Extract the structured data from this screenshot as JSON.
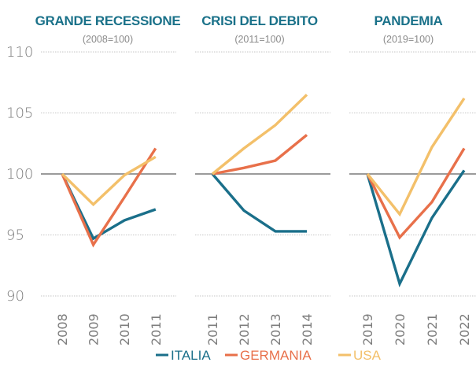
{
  "chart_data": {
    "type": "line",
    "y_axis": {
      "ticks": [
        110,
        105,
        100,
        95,
        90
      ],
      "ylim": [
        90,
        110
      ],
      "baseline": 100
    },
    "grid": true,
    "legend": {
      "placement": "bottom-center",
      "entries": [
        {
          "name": "ITALIA",
          "color": "#1a6f8a"
        },
        {
          "name": "GERMANIA",
          "color": "#e8704a"
        },
        {
          "name": "USA",
          "color": "#f3c06a"
        }
      ]
    },
    "panels": [
      {
        "title": "GRANDE RECESSIONE",
        "subtitle": "(2008=100)",
        "categories": [
          "2008",
          "2009",
          "2010",
          "2011"
        ],
        "series": [
          {
            "name": "ITALIA",
            "values": [
              100,
              94.7,
              96.2,
              97.1
            ]
          },
          {
            "name": "GERMANIA",
            "values": [
              100,
              94.2,
              98.1,
              102.1
            ]
          },
          {
            "name": "USA",
            "values": [
              100,
              97.5,
              99.9,
              101.4
            ]
          }
        ]
      },
      {
        "title": "CRISI DEL DEBITO",
        "subtitle": "(2011=100)",
        "categories": [
          "2011",
          "2012",
          "2013",
          "2014"
        ],
        "series": [
          {
            "name": "ITALIA",
            "values": [
              100,
              97.0,
              95.3,
              95.3
            ]
          },
          {
            "name": "GERMANIA",
            "values": [
              100,
              100.5,
              101.1,
              103.2
            ]
          },
          {
            "name": "USA",
            "values": [
              100,
              102.1,
              104.0,
              106.5
            ]
          }
        ]
      },
      {
        "title": "PANDEMIA",
        "subtitle": "(2019=100)",
        "categories": [
          "2019",
          "2020",
          "2021",
          "2022"
        ],
        "series": [
          {
            "name": "ITALIA",
            "values": [
              100,
              91.0,
              96.4,
              100.3
            ]
          },
          {
            "name": "GERMANIA",
            "values": [
              100,
              94.8,
              97.7,
              102.1
            ]
          },
          {
            "name": "USA",
            "values": [
              100,
              96.7,
              102.2,
              106.2
            ]
          }
        ]
      }
    ]
  }
}
